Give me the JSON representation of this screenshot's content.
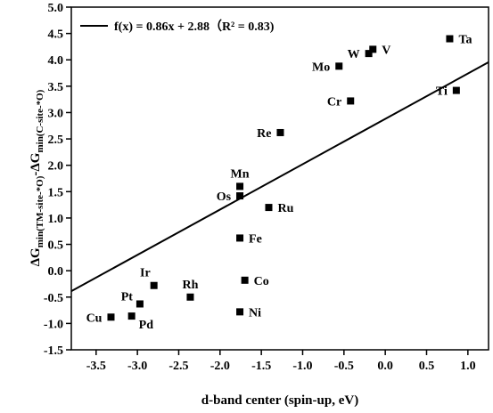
{
  "chart_data": {
    "type": "scatter",
    "xlabel": "d-band center (spin-up, eV)",
    "ylabel": {
      "p1": "ΔG",
      "s1": "min(TM-site-*O)",
      "p2": "-ΔG",
      "s2": "min(C-site-*O)"
    },
    "xlim": [
      -3.8,
      1.25
    ],
    "ylim": [
      -1.5,
      5.0
    ],
    "x_ticks": [
      -3.5,
      -3.0,
      -2.5,
      -2.0,
      -1.5,
      -1.0,
      -0.5,
      0.0,
      0.5,
      1.0
    ],
    "x_tick_labels": [
      "-3.5",
      "-3.0",
      "-2.5",
      "-2.0",
      "-1.5",
      "-1.0",
      "-0.5",
      "0.0",
      "0.5",
      "1.0"
    ],
    "y_ticks": [
      -1.5,
      -1.0,
      -0.5,
      0.0,
      0.5,
      1.0,
      1.5,
      2.0,
      2.5,
      3.0,
      3.5,
      4.0,
      4.5,
      5.0
    ],
    "y_tick_labels": [
      "-1.5",
      "-1.0",
      "-0.5",
      "0.0",
      "0.5",
      "1.0",
      "1.5",
      "2.0",
      "2.5",
      "3.0",
      "3.5",
      "4.0",
      "4.5",
      "5.0"
    ],
    "grid": false,
    "legend_position": "top-left",
    "fit": {
      "slope": 0.86,
      "intercept": 2.88,
      "label": "f(x) = 0.86x + 2.88（R² = 0.83)"
    },
    "points": [
      {
        "label": "Cu",
        "x": -3.32,
        "y": -0.88,
        "label_side": "left"
      },
      {
        "label": "Pd",
        "x": -3.07,
        "y": -0.86,
        "label_side": "right-below"
      },
      {
        "label": "Pt",
        "x": -2.97,
        "y": -0.63,
        "label_side": "left-above"
      },
      {
        "label": "Ir",
        "x": -2.8,
        "y": -0.28,
        "label_side": "above-left"
      },
      {
        "label": "Rh",
        "x": -2.36,
        "y": -0.5,
        "label_side": "above"
      },
      {
        "label": "Co",
        "x": -1.7,
        "y": -0.18,
        "label_side": "right"
      },
      {
        "label": "Ni",
        "x": -1.76,
        "y": -0.78,
        "label_side": "right"
      },
      {
        "label": "Fe",
        "x": -1.76,
        "y": 0.62,
        "label_side": "right"
      },
      {
        "label": "Ru",
        "x": -1.41,
        "y": 1.2,
        "label_side": "right"
      },
      {
        "label": "Os",
        "x": -1.76,
        "y": 1.42,
        "label_side": "left"
      },
      {
        "label": "Mn",
        "x": -1.76,
        "y": 1.6,
        "label_side": "above"
      },
      {
        "label": "Re",
        "x": -1.27,
        "y": 2.62,
        "label_side": "left"
      },
      {
        "label": "Cr",
        "x": -0.42,
        "y": 3.22,
        "label_side": "left"
      },
      {
        "label": "Mo",
        "x": -0.56,
        "y": 3.88,
        "label_side": "left"
      },
      {
        "label": "W",
        "x": -0.2,
        "y": 4.12,
        "label_side": "left"
      },
      {
        "label": "V",
        "x": -0.15,
        "y": 4.2,
        "label_side": "right"
      },
      {
        "label": "Ta",
        "x": 0.78,
        "y": 4.4,
        "label_side": "right"
      },
      {
        "label": "Ti",
        "x": 0.86,
        "y": 3.42,
        "label_side": "left"
      }
    ],
    "colors": {
      "axis": "#000000",
      "marker": "#000000",
      "fit_line": "#000000",
      "background": "#ffffff"
    }
  }
}
